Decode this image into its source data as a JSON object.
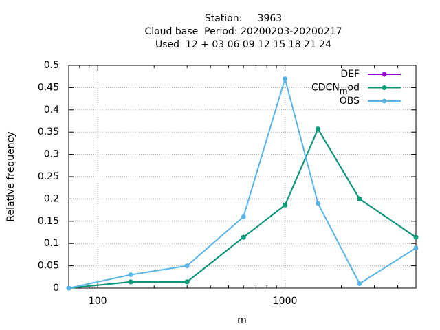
{
  "chart_data": {
    "type": "line",
    "title": [
      "Station:     3963",
      "Cloud base  Period: 20200203-20200217",
      "Used  12 + 03 06 09 12 15 18 21 24"
    ],
    "xlabel": "m",
    "ylabel": "Relative frequency",
    "x": [
      70,
      150,
      300,
      600,
      1000,
      1500,
      2500,
      5000
    ],
    "series": [
      {
        "name": "DEF",
        "color": "#9400d3",
        "values": [
          0,
          0.014,
          0.014,
          0.114,
          0.186,
          0.357,
          0.2,
          0.114
        ]
      },
      {
        "name": "CDCN_mod",
        "color": "#009e73",
        "values": [
          0,
          0.014,
          0.014,
          0.114,
          0.186,
          0.357,
          0.2,
          0.114
        ]
      },
      {
        "name": "OBS",
        "color": "#56b4e9",
        "values": [
          0,
          0.03,
          0.05,
          0.16,
          0.47,
          0.19,
          0.01,
          0.09
        ]
      }
    ],
    "xscale": "log",
    "xlim": [
      70,
      5000
    ],
    "xticks": [
      100,
      1000
    ],
    "xminorticks": [
      80,
      90,
      200,
      300,
      400,
      500,
      600,
      700,
      800,
      900,
      2000,
      3000,
      4000,
      5000
    ],
    "ylim": [
      0,
      0.5
    ],
    "yticks": [
      0,
      0.05,
      0.1,
      0.15,
      0.2,
      0.25,
      0.3,
      0.35,
      0.4,
      0.45,
      0.5
    ],
    "grid": true,
    "legend": "upper right"
  }
}
